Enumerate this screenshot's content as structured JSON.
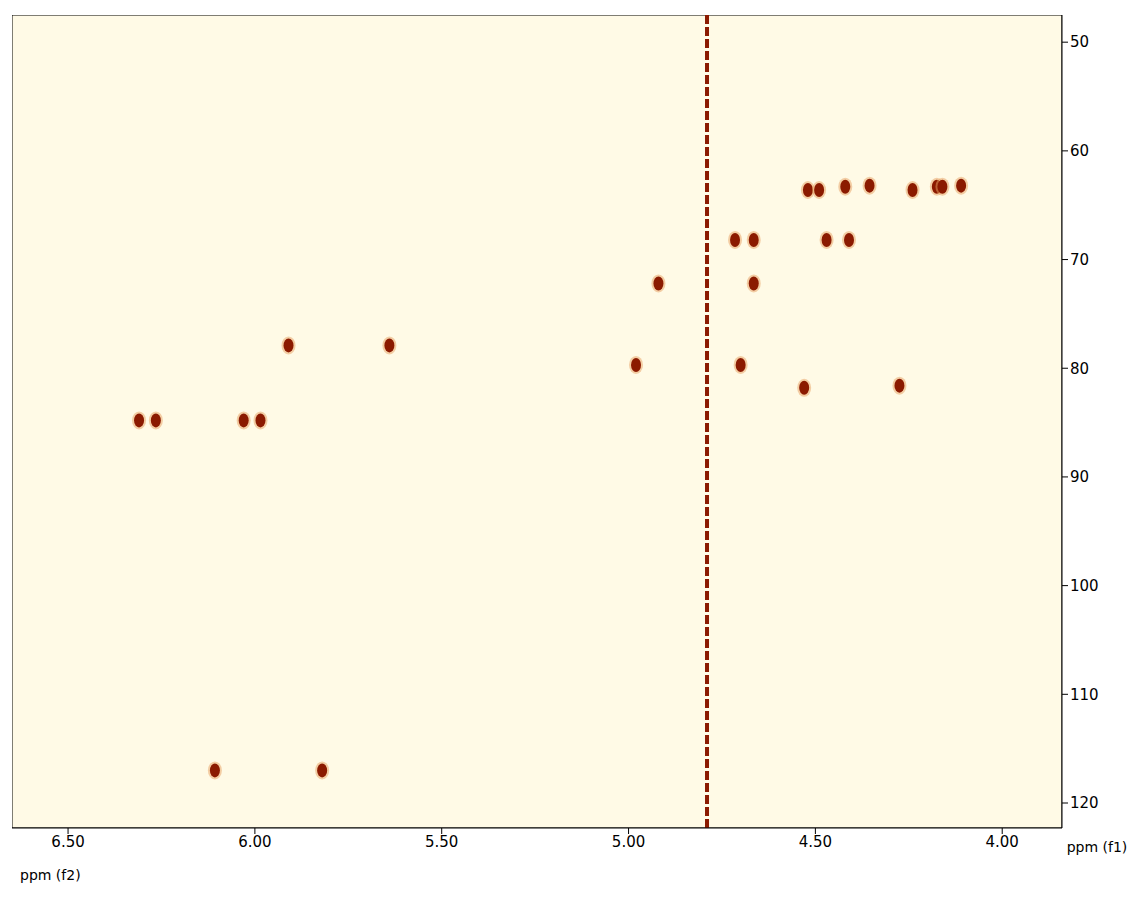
{
  "chart_data": {
    "type": "scatter",
    "x_label": "ppm (f2)",
    "y_label": "ppm (f1)",
    "xlim": [
      6.65,
      3.84
    ],
    "ylim": [
      47.5,
      122.3
    ],
    "xticks": [
      {
        "value": 6.5,
        "label": "6.50"
      },
      {
        "value": 6.0,
        "label": "6.00"
      },
      {
        "value": 5.5,
        "label": "5.50"
      },
      {
        "value": 5.0,
        "label": "5.00"
      },
      {
        "value": 4.5,
        "label": "4.50"
      },
      {
        "value": 4.0,
        "label": "4.00"
      }
    ],
    "yticks": [
      50,
      60,
      70,
      80,
      90,
      100,
      110,
      120
    ],
    "x": [
      6.31,
      6.265,
      6.03,
      5.985,
      5.91,
      5.64,
      6.107,
      5.82,
      4.92,
      4.665,
      4.665,
      4.715,
      4.47,
      4.41,
      4.53,
      4.275,
      4.98,
      4.7,
      4.52,
      4.49,
      4.42,
      4.355,
      4.24,
      4.175,
      4.16,
      4.11
    ],
    "values": [
      84.8,
      84.8,
      84.8,
      84.8,
      77.9,
      77.9,
      117.0,
      117.0,
      72.2,
      72.2,
      68.2,
      68.2,
      68.2,
      68.2,
      81.8,
      81.6,
      79.7,
      79.7,
      63.6,
      63.6,
      63.3,
      63.2,
      63.6,
      63.3,
      63.3,
      63.2
    ],
    "vertical_line": {
      "x": 4.79
    },
    "color": "#8b1a00",
    "marker": "ellipse",
    "grid": false
  }
}
